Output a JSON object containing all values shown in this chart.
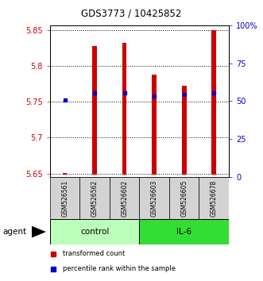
{
  "title": "GDS3773 / 10425852",
  "samples": [
    "GSM526561",
    "GSM526562",
    "GSM526602",
    "GSM526603",
    "GSM526605",
    "GSM526678"
  ],
  "groups": [
    "control",
    "control",
    "control",
    "IL-6",
    "IL-6",
    "IL-6"
  ],
  "red_bar_top": [
    5.651,
    5.828,
    5.833,
    5.788,
    5.773,
    5.85
  ],
  "red_bar_bottom": 5.648,
  "blue_dot_y": [
    5.753,
    5.763,
    5.763,
    5.758,
    5.76,
    5.763
  ],
  "ylim": [
    5.645,
    5.857
  ],
  "yticks_left": [
    5.65,
    5.7,
    5.75,
    5.8,
    5.85
  ],
  "yticks_right_vals": [
    0,
    25,
    50,
    75,
    100
  ],
  "yticks_right_labels": [
    "0",
    "25",
    "50",
    "75",
    "100%"
  ],
  "right_axis_color": "#0000cc",
  "left_axis_color": "#cc0000",
  "bar_color": "#cc0000",
  "dot_color": "#0000cc",
  "control_color": "#bbffbb",
  "il6_color": "#33dd33",
  "legend_red_label": "transformed count",
  "legend_blue_label": "percentile rank within the sample",
  "agent_label": "agent",
  "bar_width": 0.15
}
